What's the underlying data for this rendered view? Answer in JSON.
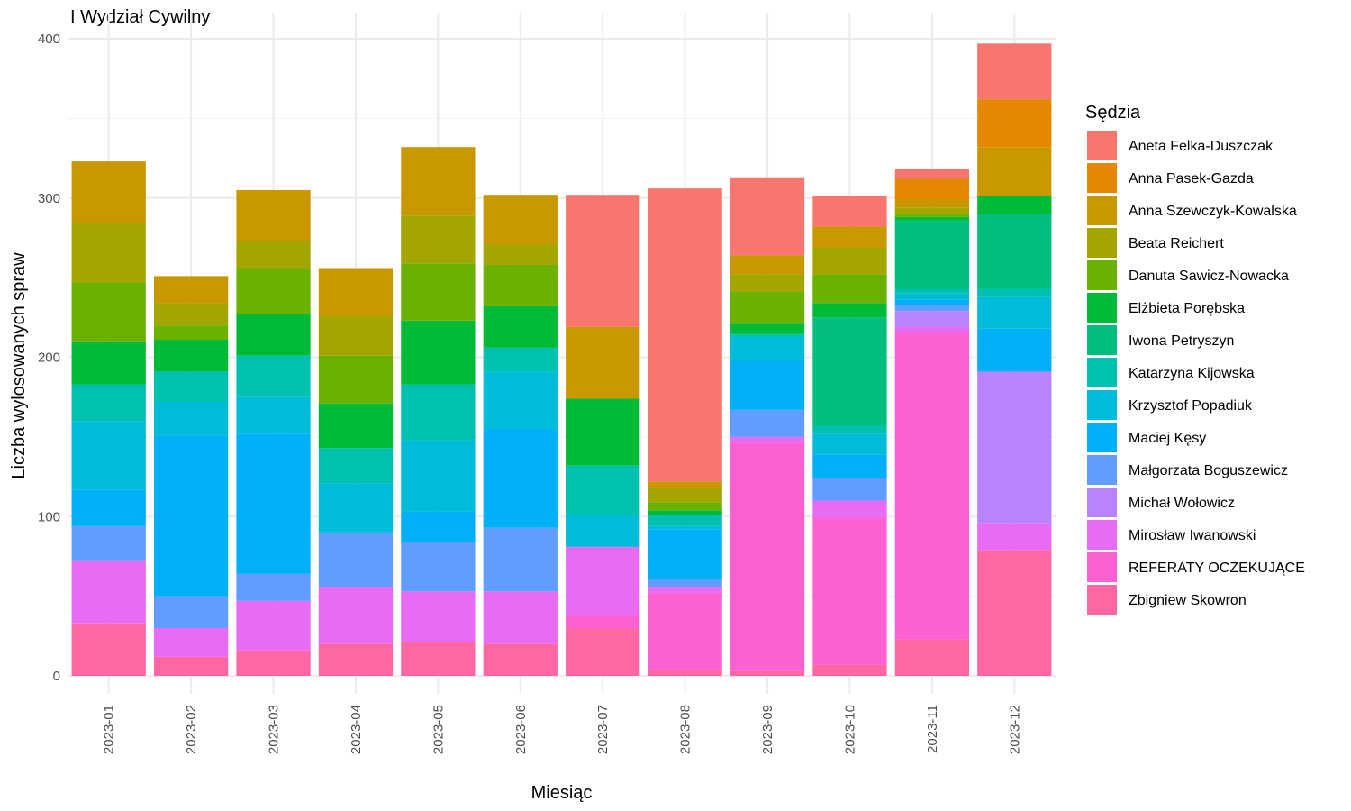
{
  "chart_data": {
    "type": "bar",
    "stacked": true,
    "title": "I Wydział Cywilny",
    "xlabel": "Miesiąc",
    "ylabel": "Liczba wylosowanych spraw",
    "ylim": [
      0,
      400
    ],
    "yticks": [
      0,
      100,
      200,
      300,
      400
    ],
    "grid": true,
    "legend_title": "Sędzia",
    "legend_position": "right",
    "categories": [
      "2023-01",
      "2023-02",
      "2023-03",
      "2023-04",
      "2023-05",
      "2023-06",
      "2023-07",
      "2023-08",
      "2023-09",
      "2023-10",
      "2023-11",
      "2023-12"
    ],
    "series": [
      {
        "name": "Aneta Felka-Duszczak",
        "color": "#F8766D",
        "values": [
          0,
          0,
          0,
          0,
          0,
          0,
          83,
          184,
          49,
          19,
          6,
          35
        ]
      },
      {
        "name": "Anna Pasek-Gazda",
        "color": "#E58700",
        "values": [
          0,
          0,
          0,
          0,
          0,
          0,
          0,
          0,
          0,
          0,
          13,
          30
        ]
      },
      {
        "name": "Anna Szewczyk-Kowalska",
        "color": "#C99800",
        "values": [
          39,
          17,
          32,
          30,
          43,
          31,
          45,
          4,
          12,
          13,
          5,
          31
        ]
      },
      {
        "name": "Beata Reichert",
        "color": "#A3A500",
        "values": [
          37,
          14,
          17,
          25,
          30,
          13,
          0,
          9,
          11,
          17,
          4,
          0
        ]
      },
      {
        "name": "Danuta Sawicz-Nowacka",
        "color": "#6BB100",
        "values": [
          37,
          9,
          29,
          30,
          36,
          26,
          0,
          5,
          20,
          18,
          2,
          0
        ]
      },
      {
        "name": "Elżbieta Porębska",
        "color": "#00BA38",
        "values": [
          27,
          20,
          26,
          28,
          40,
          26,
          42,
          3,
          6,
          9,
          2,
          11
        ]
      },
      {
        "name": "Iwona Petryszyn",
        "color": "#00BF7D",
        "values": [
          0,
          0,
          0,
          0,
          0,
          0,
          0,
          0,
          1,
          68,
          43,
          47
        ]
      },
      {
        "name": "Katarzyna Kijowska",
        "color": "#00C0AF",
        "values": [
          23,
          19,
          26,
          22,
          35,
          15,
          31,
          7,
          1,
          5,
          3,
          5
        ]
      },
      {
        "name": "Krzysztof Popadiuk",
        "color": "#00BCD8",
        "values": [
          43,
          21,
          23,
          31,
          45,
          36,
          20,
          2,
          15,
          13,
          4,
          20
        ]
      },
      {
        "name": "Maciej Kęsy",
        "color": "#00B0F6",
        "values": [
          23,
          101,
          88,
          0,
          19,
          62,
          0,
          31,
          31,
          15,
          3,
          27
        ]
      },
      {
        "name": "Małgorzata Boguszewicz",
        "color": "#619CFF",
        "values": [
          22,
          20,
          17,
          34,
          31,
          40,
          0,
          5,
          17,
          14,
          4,
          0
        ]
      },
      {
        "name": "Michał Wołowicz",
        "color": "#B983FF",
        "values": [
          0,
          0,
          0,
          0,
          0,
          0,
          0,
          0,
          0,
          0,
          10,
          95
        ]
      },
      {
        "name": "Mirosław Iwanowski",
        "color": "#E76BF3",
        "values": [
          39,
          18,
          31,
          36,
          32,
          33,
          43,
          4,
          4,
          11,
          4,
          17
        ]
      },
      {
        "name": "REFERATY OCZEKUJĄCE",
        "color": "#FD61D1",
        "values": [
          0,
          0,
          0,
          0,
          0,
          0,
          8,
          48,
          143,
          92,
          192,
          0
        ]
      },
      {
        "name": "Zbigniew Skowron",
        "color": "#FF67A4",
        "values": [
          33,
          12,
          16,
          20,
          21,
          20,
          30,
          4,
          3,
          7,
          23,
          79
        ]
      }
    ]
  }
}
